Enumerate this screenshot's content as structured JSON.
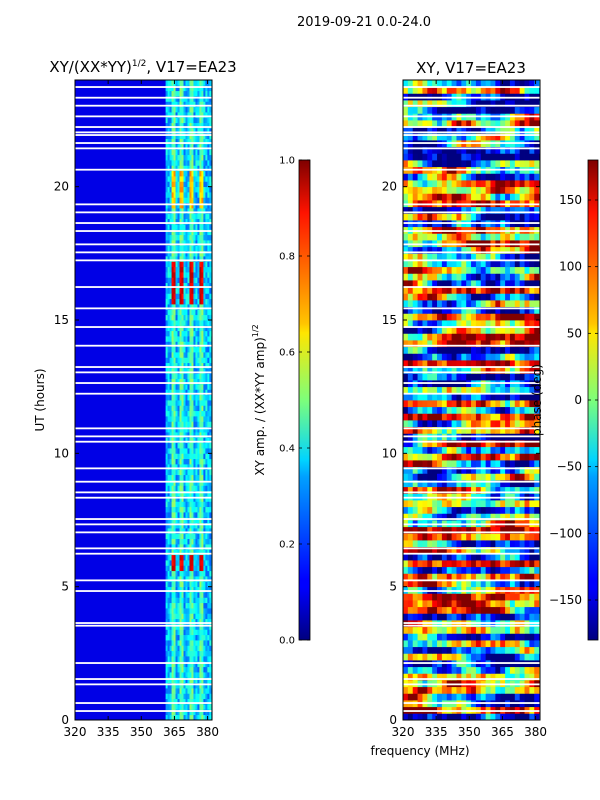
{
  "page_title": "2019-09-21 0.0-24.0",
  "chart_data": [
    {
      "type": "heatmap",
      "title": "XY/(XX*YY)^1/2, V17=EA23",
      "title_main": "XY/(XX*YY)",
      "title_sup": "1/2",
      "title_tail": ", V17=EA23",
      "xlabel": "",
      "ylabel": "UT (hours)",
      "xlim": [
        320,
        382
      ],
      "ylim": [
        0,
        24
      ],
      "x_ticks": [
        320,
        335,
        350,
        365,
        380
      ],
      "y_ticks": [
        0,
        5,
        10,
        15,
        20
      ],
      "colorbar": {
        "label_main": "XY amp. / (XX*YY amp)",
        "label_sup": "1/2",
        "range": [
          0.0,
          1.0
        ],
        "ticks": [
          "0.0",
          "0.2",
          "0.4",
          "0.6",
          "0.8",
          "1.0"
        ],
        "tick_values": [
          0.0,
          0.2,
          0.4,
          0.6,
          0.8,
          1.0
        ],
        "colormap": "jet"
      }
    },
    {
      "type": "heatmap",
      "title": "XY, V17=EA23",
      "xlabel": "frequency (MHz)",
      "ylabel": "",
      "xlim": [
        320,
        382
      ],
      "ylim": [
        0,
        24
      ],
      "x_ticks": [
        320,
        335,
        350,
        365,
        380
      ],
      "y_ticks": [
        0,
        5,
        10,
        15,
        20
      ],
      "colorbar": {
        "label": "phase (deg)",
        "range": [
          -180,
          180
        ],
        "ticks": [
          "150",
          "100",
          "50",
          "0",
          "−50",
          "−100",
          "−150"
        ],
        "tick_values": [
          150,
          100,
          50,
          0,
          -50,
          -100,
          -150
        ],
        "colormap": "jet"
      }
    }
  ]
}
